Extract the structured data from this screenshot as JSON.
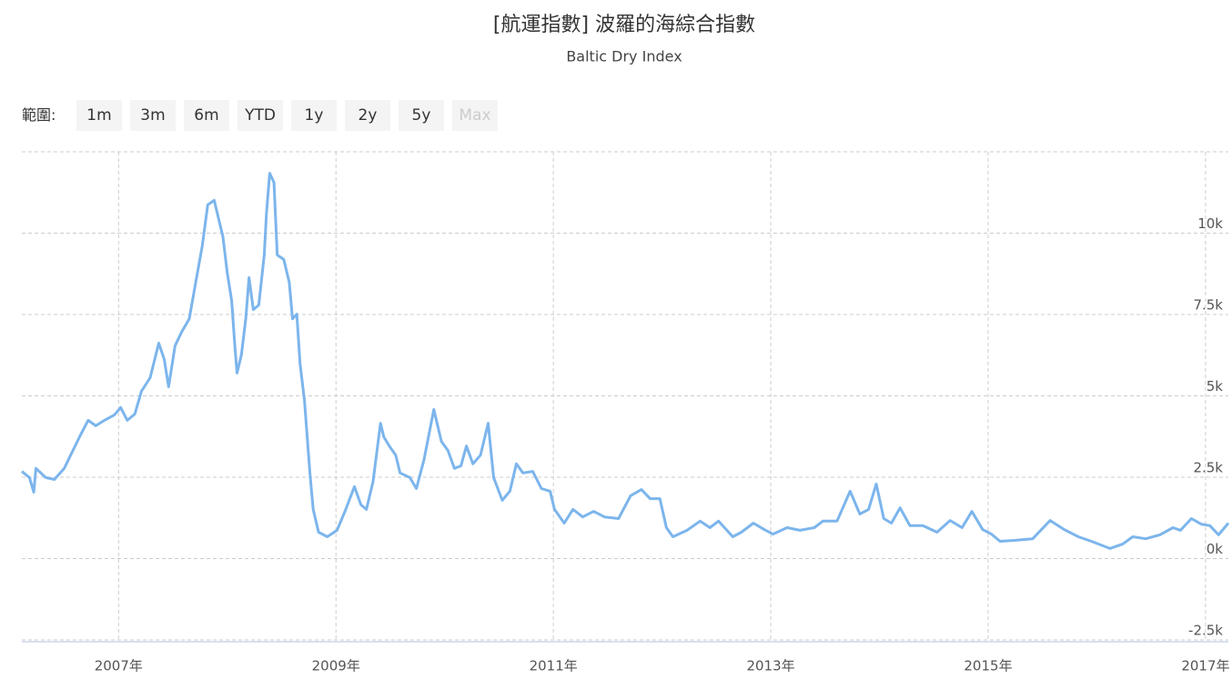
{
  "range_selector": {
    "label": "範圍:",
    "buttons": [
      "1m",
      "3m",
      "6m",
      "YTD",
      "1y",
      "2y",
      "5y",
      "Max"
    ]
  },
  "chart_data": {
    "type": "line",
    "title": "[航運指數] 波羅的海綜合指數",
    "subtitle": "Baltic Dry Index",
    "x": [
      2006.11,
      2006.18,
      2006.22,
      2006.24,
      2006.33,
      2006.41,
      2006.5,
      2006.58,
      2006.65,
      2006.72,
      2006.79,
      2006.87,
      2006.96,
      2007.02,
      2007.08,
      2007.15,
      2007.21,
      2007.29,
      2007.37,
      2007.42,
      2007.46,
      2007.52,
      2007.58,
      2007.65,
      2007.71,
      2007.77,
      2007.82,
      2007.88,
      2007.92,
      2007.96,
      2008.0,
      2008.04,
      2008.07,
      2008.09,
      2008.13,
      2008.17,
      2008.2,
      2008.24,
      2008.29,
      2008.34,
      2008.36,
      2008.39,
      2008.43,
      2008.46,
      2008.52,
      2008.57,
      2008.6,
      2008.64,
      2008.67,
      2008.71,
      2008.76,
      2008.79,
      2008.84,
      2008.92,
      2009.01,
      2009.09,
      2009.17,
      2009.23,
      2009.28,
      2009.34,
      2009.41,
      2009.44,
      2009.49,
      2009.55,
      2009.59,
      2009.68,
      2009.74,
      2009.81,
      2009.9,
      2009.97,
      2010.03,
      2010.09,
      2010.15,
      2010.2,
      2010.26,
      2010.33,
      2010.4,
      2010.45,
      2010.53,
      2010.6,
      2010.66,
      2010.72,
      2010.81,
      2010.89,
      2010.97,
      2011.01,
      2011.1,
      2011.18,
      2011.27,
      2011.37,
      2011.47,
      2011.6,
      2011.71,
      2011.81,
      2011.89,
      2011.98,
      2012.04,
      2012.1,
      2012.23,
      2012.35,
      2012.44,
      2012.52,
      2012.65,
      2012.73,
      2012.84,
      2012.94,
      2013.02,
      2013.15,
      2013.27,
      2013.4,
      2013.48,
      2013.61,
      2013.73,
      2013.82,
      2013.9,
      2013.97,
      2014.04,
      2014.11,
      2014.19,
      2014.28,
      2014.4,
      2014.53,
      2014.65,
      2014.76,
      2014.85,
      2014.95,
      2015.03,
      2015.11,
      2015.24,
      2015.41,
      2015.57,
      2015.7,
      2015.83,
      2015.95,
      2016.12,
      2016.24,
      2016.33,
      2016.45,
      2016.58,
      2016.7,
      2016.77,
      2016.87,
      2016.96,
      2017.04,
      2017.12,
      2017.21
    ],
    "series": [
      {
        "name": "Baltic Dry Index",
        "color": "#7cb5ec",
        "values": [
          2680,
          2490,
          2040,
          2770,
          2490,
          2430,
          2770,
          3320,
          3800,
          4250,
          4080,
          4250,
          4410,
          4640,
          4250,
          4440,
          5140,
          5560,
          6620,
          6120,
          5280,
          6540,
          6960,
          7370,
          8490,
          9610,
          10870,
          11010,
          10450,
          9890,
          8770,
          7930,
          6540,
          5700,
          6260,
          7370,
          8630,
          7650,
          7790,
          9330,
          10590,
          11840,
          11560,
          9330,
          9190,
          8490,
          7370,
          7510,
          5980,
          4860,
          2630,
          1510,
          810,
          670,
          870,
          1510,
          2210,
          1650,
          1510,
          2350,
          4160,
          3740,
          3460,
          3180,
          2630,
          2490,
          2150,
          3040,
          4580,
          3600,
          3320,
          2770,
          2850,
          3460,
          2910,
          3180,
          4160,
          2490,
          1790,
          2070,
          2910,
          2630,
          2680,
          2150,
          2070,
          1510,
          1090,
          1510,
          1280,
          1450,
          1280,
          1230,
          1930,
          2120,
          1840,
          1840,
          950,
          670,
          870,
          1150,
          950,
          1150,
          670,
          810,
          1090,
          890,
          750,
          950,
          870,
          950,
          1150,
          1150,
          2070,
          1370,
          1510,
          2290,
          1230,
          1090,
          1560,
          1010,
          1010,
          810,
          1170,
          950,
          1450,
          890,
          750,
          530,
          560,
          610,
          1170,
          890,
          670,
          530,
          310,
          450,
          670,
          610,
          730,
          950,
          870,
          1230,
          1060,
          1010,
          730,
          1090
        ]
      }
    ],
    "xlim": [
      2006.11,
      2017.21
    ],
    "xticks": [
      {
        "value": 2007,
        "label": "2007年"
      },
      {
        "value": 2009,
        "label": "2009年"
      },
      {
        "value": 2011,
        "label": "2011年"
      },
      {
        "value": 2013,
        "label": "2013年"
      },
      {
        "value": 2015,
        "label": "2015年"
      },
      {
        "value": 2017,
        "label": "2017年"
      }
    ],
    "ylim": [
      -2500,
      12500
    ],
    "yticks": [
      {
        "value": -2500,
        "label": "-2.5k"
      },
      {
        "value": 0,
        "label": "0k"
      },
      {
        "value": 2500,
        "label": "2.5k"
      },
      {
        "value": 5000,
        "label": "5k"
      },
      {
        "value": 7500,
        "label": "7.5k"
      },
      {
        "value": 10000,
        "label": "10k"
      }
    ],
    "grid": true
  }
}
